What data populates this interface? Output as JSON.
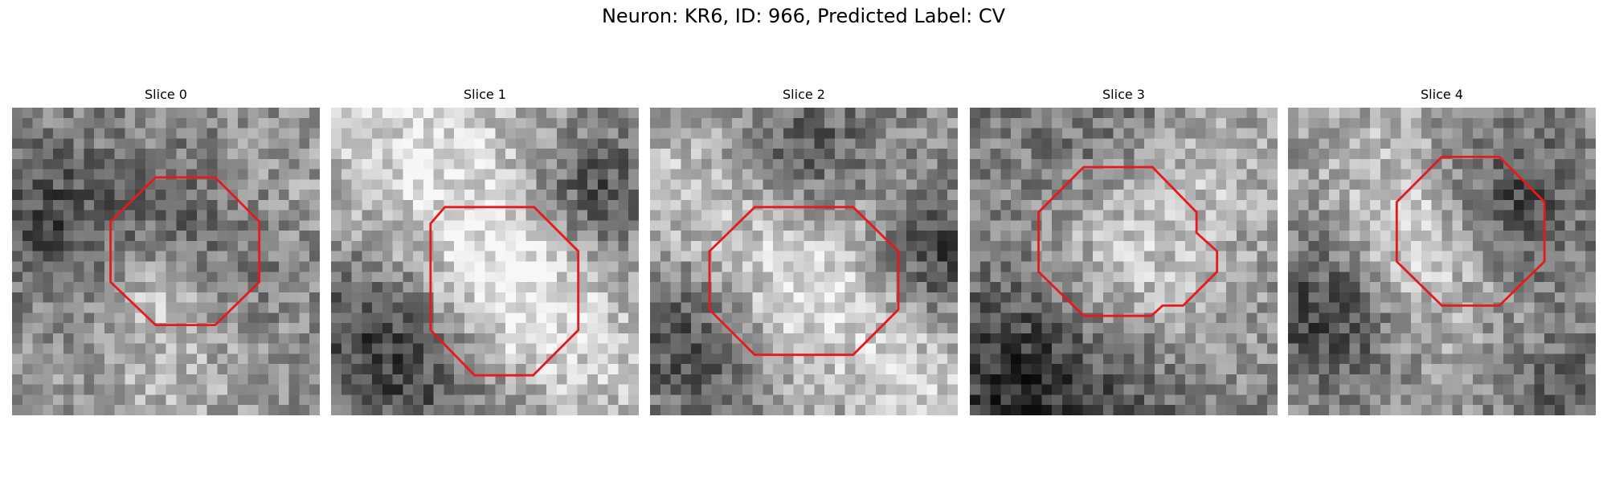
{
  "title": "Neuron: KR6, ID: 966, Predicted Label: CV",
  "panels": [
    {
      "title": "Slice 0"
    },
    {
      "title": "Slice 1"
    },
    {
      "title": "Slice 2"
    },
    {
      "title": "Slice 3"
    },
    {
      "title": "Slice 4"
    }
  ]
}
